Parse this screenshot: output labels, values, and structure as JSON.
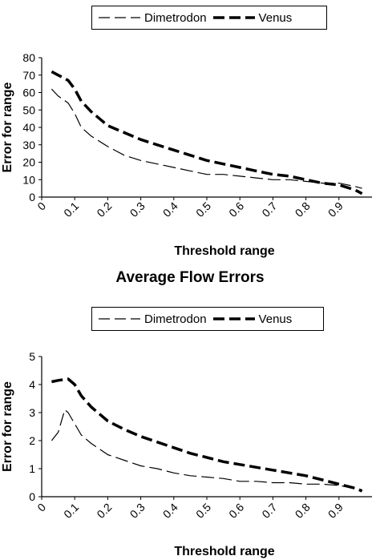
{
  "caption": "Average Flow Errors",
  "chart_data": [
    {
      "type": "line",
      "title": "",
      "xlabel": "Threshold range",
      "ylabel": "Error for range",
      "ylim": [
        0,
        80
      ],
      "yticks": [
        "0",
        "10",
        "20",
        "30",
        "40",
        "50",
        "60",
        "70",
        "80"
      ],
      "xticks": [
        "0",
        "0.1",
        "0.2",
        "0.3",
        "0.4",
        "0.5",
        "0.6",
        "0.7",
        "0.8",
        "0.9"
      ],
      "legend_position": "top",
      "series": [
        {
          "name": "Dimetrodon",
          "style": "thin-dashed",
          "color": "#000000",
          "x": [
            0.03,
            0.05,
            0.08,
            0.1,
            0.12,
            0.15,
            0.2,
            0.25,
            0.3,
            0.35,
            0.4,
            0.45,
            0.5,
            0.55,
            0.6,
            0.65,
            0.7,
            0.75,
            0.8,
            0.85,
            0.9,
            0.95,
            0.97
          ],
          "values": [
            62,
            58,
            54,
            48,
            40,
            35,
            29,
            24,
            21,
            19,
            17,
            15,
            13,
            13,
            12,
            11,
            10,
            10,
            9,
            8,
            8,
            6,
            5
          ]
        },
        {
          "name": "Venus",
          "style": "thick-dashed",
          "color": "#000000",
          "x": [
            0.03,
            0.05,
            0.08,
            0.1,
            0.12,
            0.15,
            0.2,
            0.25,
            0.3,
            0.35,
            0.4,
            0.45,
            0.5,
            0.55,
            0.6,
            0.65,
            0.7,
            0.75,
            0.8,
            0.85,
            0.9,
            0.95,
            0.97
          ],
          "values": [
            72,
            70,
            67,
            62,
            55,
            49,
            41,
            37,
            33,
            30,
            27,
            24,
            21,
            19,
            17,
            15,
            13,
            12,
            10,
            8,
            7,
            4,
            2
          ]
        }
      ]
    },
    {
      "type": "line",
      "title": "",
      "xlabel": "Threshold range",
      "ylabel": "Error for range",
      "ylim": [
        0,
        5
      ],
      "yticks": [
        "0",
        "1",
        "2",
        "3",
        "4",
        "5"
      ],
      "xticks": [
        "0",
        "0.1",
        "0.2",
        "0.3",
        "0.4",
        "0.5",
        "0.6",
        "0.7",
        "0.8",
        "0.9"
      ],
      "legend_position": "top",
      "series": [
        {
          "name": "Dimetrodon",
          "style": "thin-dashed",
          "color": "#000000",
          "x": [
            0.03,
            0.05,
            0.07,
            0.08,
            0.1,
            0.12,
            0.15,
            0.2,
            0.25,
            0.3,
            0.35,
            0.4,
            0.45,
            0.5,
            0.55,
            0.6,
            0.65,
            0.7,
            0.75,
            0.8,
            0.85,
            0.9,
            0.95,
            0.97
          ],
          "values": [
            2.0,
            2.3,
            3.1,
            3.0,
            2.6,
            2.2,
            1.9,
            1.5,
            1.3,
            1.1,
            1.0,
            0.85,
            0.75,
            0.7,
            0.65,
            0.55,
            0.55,
            0.5,
            0.5,
            0.45,
            0.45,
            0.4,
            0.3,
            0.25
          ]
        },
        {
          "name": "Venus",
          "style": "thick-dashed",
          "color": "#000000",
          "x": [
            0.03,
            0.05,
            0.08,
            0.1,
            0.12,
            0.15,
            0.2,
            0.25,
            0.3,
            0.35,
            0.4,
            0.45,
            0.5,
            0.55,
            0.6,
            0.65,
            0.7,
            0.75,
            0.8,
            0.85,
            0.9,
            0.95,
            0.97
          ],
          "values": [
            4.1,
            4.15,
            4.2,
            4.0,
            3.6,
            3.2,
            2.7,
            2.4,
            2.15,
            1.95,
            1.75,
            1.55,
            1.4,
            1.25,
            1.15,
            1.05,
            0.95,
            0.85,
            0.75,
            0.6,
            0.45,
            0.3,
            0.2
          ]
        }
      ]
    }
  ]
}
